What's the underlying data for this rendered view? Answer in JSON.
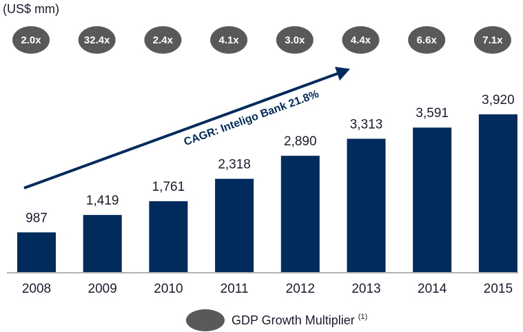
{
  "chart_data": {
    "type": "bar",
    "unit_label": "(US$ mm)",
    "categories": [
      "2008",
      "2009",
      "2010",
      "2011",
      "2012",
      "2013",
      "2014",
      "2015"
    ],
    "values": [
      987,
      1419,
      1761,
      2318,
      2890,
      3313,
      3591,
      3920
    ],
    "value_labels": [
      "987",
      "1,419",
      "1,761",
      "2,318",
      "2,890",
      "3,313",
      "3,591",
      "3,920"
    ],
    "multipliers": [
      "2.0x",
      "32.4x",
      "2.4x",
      "4.1x",
      "3.0x",
      "4.4x",
      "6.6x",
      "7.1x"
    ],
    "multiplier_color": "#595959",
    "annotation": "CAGR: Inteligo Bank 21.8%",
    "legend": {
      "label": "GDP Growth Multiplier",
      "note": "(1)"
    },
    "color": "#002b5c"
  }
}
